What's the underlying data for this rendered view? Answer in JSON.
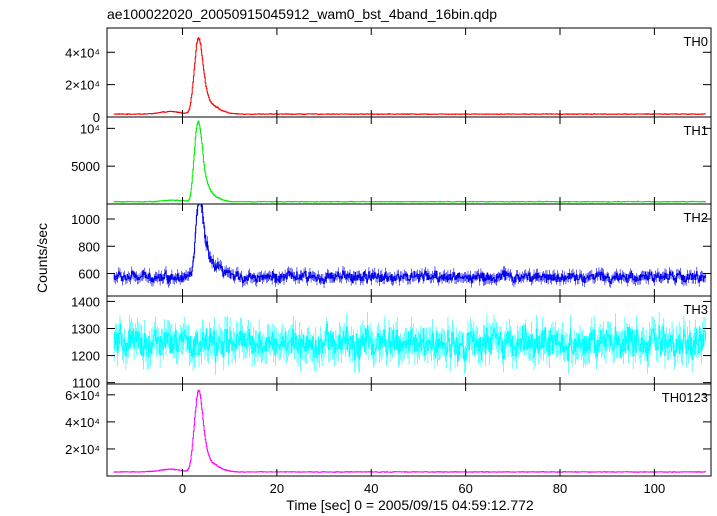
{
  "title": "ae100022020_20050915045912_wam0_bst_4band_16bin.qdp",
  "ylabel": "Counts/sec",
  "xlabel": "Time [sec] 0 = 2005/09/15 04:59:12.772",
  "chart_data": [
    {
      "type": "line",
      "panel": "TH0",
      "color": "#ff0000",
      "xlim": [
        -16,
        112
      ],
      "ylim": [
        0,
        55000
      ],
      "yticks": [
        0,
        20000,
        40000
      ],
      "yticklabels": [
        "0",
        "2×10⁴",
        "4×10⁴"
      ],
      "baseline": 1800,
      "noise": 220,
      "bumps": [
        [
          -2.5,
          2.2,
          1500
        ],
        [
          2.5,
          0.55,
          16000
        ],
        [
          3.3,
          0.55,
          30000
        ],
        [
          4.0,
          0.6,
          20000
        ],
        [
          4.8,
          0.7,
          9000
        ],
        [
          6.0,
          1.2,
          5000
        ],
        [
          8.0,
          1.5,
          1600
        ]
      ]
    },
    {
      "type": "line",
      "panel": "TH1",
      "color": "#00ee00",
      "xlim": [
        -16,
        112
      ],
      "ylim": [
        0,
        11500
      ],
      "yticks": [
        5000,
        10000
      ],
      "yticklabels": [
        "5000",
        "10⁴"
      ],
      "baseline": 300,
      "noise": 50,
      "bumps": [
        [
          -2.0,
          2.0,
          200
        ],
        [
          2.6,
          0.5,
          4000
        ],
        [
          3.3,
          0.55,
          6500
        ],
        [
          4.0,
          0.6,
          4200
        ],
        [
          5.0,
          0.9,
          1800
        ],
        [
          6.5,
          1.5,
          600
        ]
      ]
    },
    {
      "type": "line",
      "panel": "TH2",
      "color": "#0000ee",
      "xlim": [
        -16,
        112
      ],
      "ylim": [
        435,
        1110
      ],
      "yticks": [
        600,
        800,
        1000
      ],
      "yticklabels": [
        "600",
        "800",
        "1000"
      ],
      "baseline": 575,
      "noise": 38,
      "bumps": [
        [
          3.0,
          0.5,
          250
        ],
        [
          3.8,
          0.6,
          380
        ],
        [
          4.8,
          0.8,
          150
        ],
        [
          6.5,
          1.8,
          70
        ]
      ]
    },
    {
      "type": "line",
      "panel": "TH3",
      "color": "#00ffff",
      "xlim": [
        -16,
        112
      ],
      "ylim": [
        1095,
        1420
      ],
      "yticks": [
        1100,
        1200,
        1300,
        1400
      ],
      "yticklabels": [
        "1100",
        "1200",
        "1300",
        "1400"
      ],
      "baseline": 1245,
      "noise": 55,
      "bumps": []
    },
    {
      "type": "line",
      "panel": "TH0123",
      "color": "#ff00ff",
      "xlim": [
        -16,
        112
      ],
      "ylim": [
        0,
        68000
      ],
      "yticks": [
        20000,
        40000,
        60000
      ],
      "yticklabels": [
        "2×10⁴",
        "4×10⁴",
        "6×10⁴"
      ],
      "baseline": 3000,
      "noise": 260,
      "bumps": [
        [
          -2.5,
          2.2,
          2000
        ],
        [
          2.5,
          0.55,
          20000
        ],
        [
          3.3,
          0.55,
          38000
        ],
        [
          4.0,
          0.6,
          26000
        ],
        [
          4.8,
          0.7,
          11000
        ],
        [
          6.0,
          1.2,
          5500
        ],
        [
          8.0,
          1.5,
          1800
        ]
      ]
    }
  ],
  "xticks": [
    0,
    20,
    40,
    60,
    80,
    100
  ],
  "xticklabels": [
    "0",
    "20",
    "40",
    "60",
    "80",
    "100"
  ]
}
